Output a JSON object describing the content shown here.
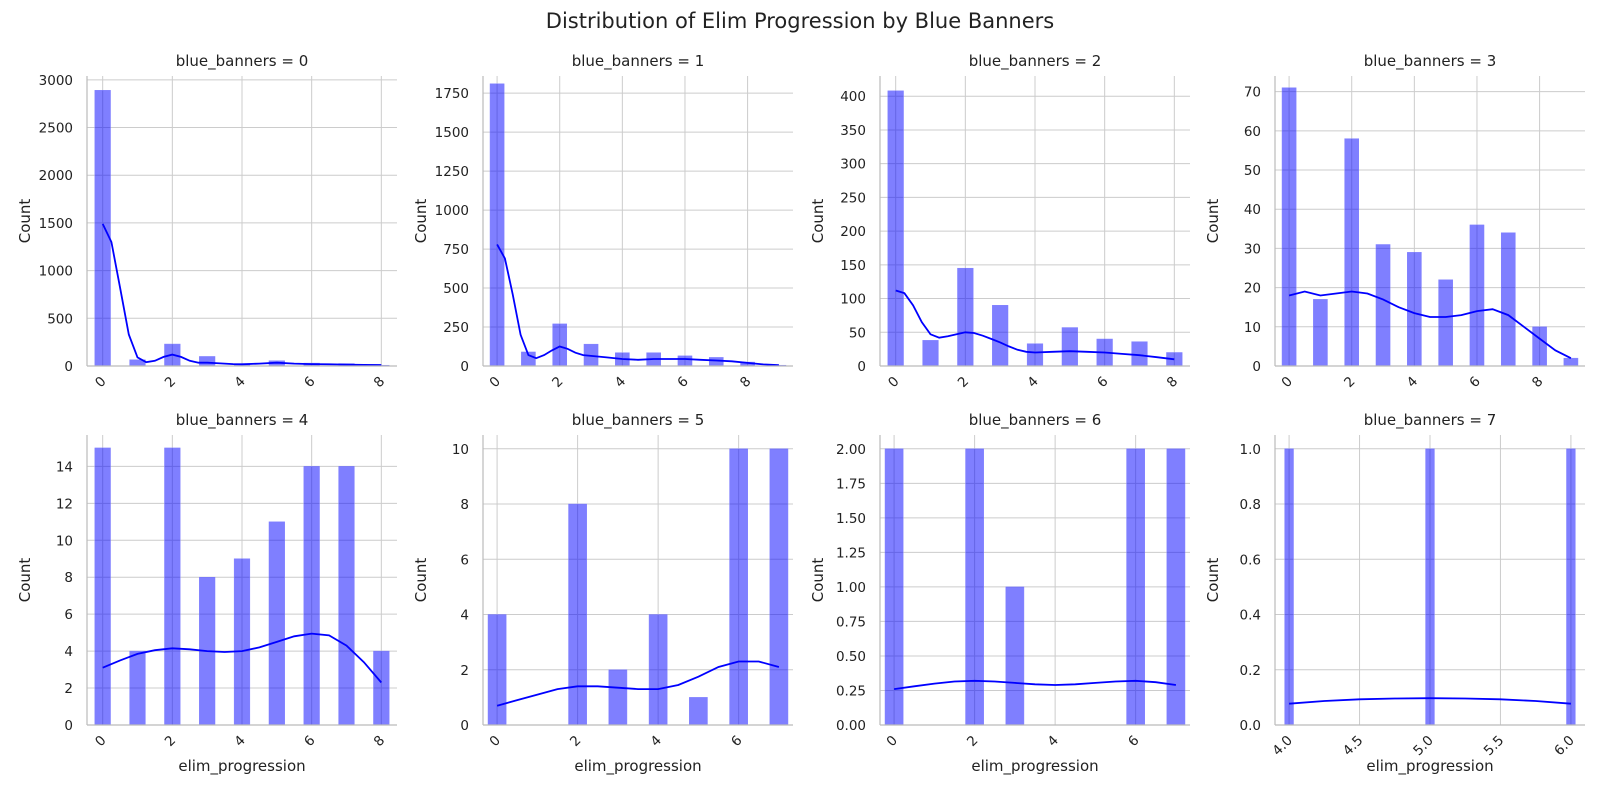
{
  "suptitle": "Distribution of Elim Progression by Blue Banners",
  "colors": {
    "bar": "#0000ff",
    "bar_opacity": 0.5,
    "kde": "#0000ff",
    "grid": "#cccccc",
    "axis": "#bbbbbb"
  },
  "chart_data": [
    {
      "type": "bar",
      "title": "blue_banners = 0",
      "xlabel": "",
      "ylabel": "Count",
      "xlim": [
        -0.45,
        8.45
      ],
      "ylim": [
        0,
        3040
      ],
      "xticks": [
        "0",
        "2",
        "4",
        "6",
        "8"
      ],
      "xtick_values": [
        0,
        2,
        4,
        6,
        8
      ],
      "yticks": [
        "0",
        "500",
        "1000",
        "1500",
        "2000",
        "2500",
        "3000"
      ],
      "ytick_values": [
        0,
        500,
        1000,
        1500,
        2000,
        2500,
        3000
      ],
      "x": [
        0,
        1,
        2,
        3,
        4,
        5,
        6,
        7,
        8
      ],
      "values": [
        2890,
        65,
        230,
        100,
        25,
        55,
        30,
        25,
        8
      ],
      "kde_x": [
        0,
        0.25,
        0.5,
        0.75,
        1,
        1.25,
        1.5,
        1.75,
        2,
        2.25,
        2.5,
        2.75,
        3,
        3.25,
        3.5,
        3.75,
        4,
        4.5,
        5,
        5.5,
        6,
        6.5,
        7,
        7.5,
        8
      ],
      "kde_y": [
        1490,
        1300,
        820,
        330,
        90,
        40,
        55,
        95,
        120,
        95,
        55,
        35,
        35,
        30,
        25,
        20,
        18,
        25,
        35,
        25,
        20,
        18,
        15,
        12,
        10
      ]
    },
    {
      "type": "bar",
      "title": "blue_banners = 1",
      "xlabel": "",
      "ylabel": "Count",
      "xlim": [
        -0.45,
        9.45
      ],
      "ylim": [
        0,
        1860
      ],
      "xticks": [
        "0",
        "2",
        "4",
        "6",
        "8"
      ],
      "xtick_values": [
        0,
        2,
        4,
        6,
        8
      ],
      "yticks": [
        "0",
        "250",
        "500",
        "750",
        "1000",
        "1250",
        "1500",
        "1750"
      ],
      "ytick_values": [
        0,
        250,
        500,
        750,
        1000,
        1250,
        1500,
        1750
      ],
      "x": [
        0,
        1,
        2,
        3,
        4,
        5,
        6,
        7,
        8,
        9
      ],
      "values": [
        1810,
        90,
        270,
        140,
        85,
        85,
        65,
        55,
        25,
        5
      ],
      "kde_x": [
        0,
        0.25,
        0.5,
        0.75,
        1,
        1.25,
        1.5,
        1.75,
        2,
        2.25,
        2.5,
        2.75,
        3,
        3.5,
        4,
        4.5,
        5,
        5.5,
        6,
        6.5,
        7,
        7.5,
        8,
        8.5,
        9
      ],
      "kde_y": [
        780,
        690,
        460,
        200,
        70,
        50,
        70,
        100,
        125,
        110,
        85,
        70,
        65,
        55,
        45,
        40,
        45,
        45,
        45,
        40,
        35,
        30,
        20,
        10,
        5
      ]
    },
    {
      "type": "bar",
      "title": "blue_banners = 2",
      "xlabel": "",
      "ylabel": "Count",
      "xlim": [
        -0.45,
        8.45
      ],
      "ylim": [
        0,
        430
      ],
      "xticks": [
        "0",
        "2",
        "4",
        "6",
        "8"
      ],
      "xtick_values": [
        0,
        2,
        4,
        6,
        8
      ],
      "yticks": [
        "0",
        "50",
        "100",
        "150",
        "200",
        "250",
        "300",
        "350",
        "400"
      ],
      "ytick_values": [
        0,
        50,
        100,
        150,
        200,
        250,
        300,
        350,
        400
      ],
      "x": [
        0,
        1,
        2,
        3,
        4,
        5,
        6,
        7,
        8
      ],
      "values": [
        408,
        38,
        145,
        90,
        33,
        57,
        40,
        36,
        20
      ],
      "kde_x": [
        0,
        0.25,
        0.5,
        0.75,
        1,
        1.25,
        1.5,
        1.75,
        2,
        2.25,
        2.5,
        2.75,
        3,
        3.25,
        3.5,
        3.75,
        4,
        4.5,
        5,
        5.5,
        6,
        6.5,
        7,
        7.5,
        8
      ],
      "kde_y": [
        112,
        108,
        90,
        65,
        47,
        42,
        44,
        47,
        50,
        49,
        45,
        40,
        35,
        29,
        24,
        21,
        20,
        21,
        22,
        21,
        20,
        18,
        16,
        13,
        10
      ]
    },
    {
      "type": "bar",
      "title": "blue_banners = 3",
      "xlabel": "",
      "ylabel": "Count",
      "xlim": [
        -0.45,
        9.45
      ],
      "ylim": [
        0,
        74
      ],
      "xticks": [
        "0",
        "2",
        "4",
        "6",
        "8"
      ],
      "xtick_values": [
        0,
        2,
        4,
        6,
        8
      ],
      "yticks": [
        "0",
        "10",
        "20",
        "30",
        "40",
        "50",
        "60",
        "70"
      ],
      "ytick_values": [
        0,
        10,
        20,
        30,
        40,
        50,
        60,
        70
      ],
      "x": [
        0,
        1,
        2,
        3,
        4,
        5,
        6,
        7,
        8,
        9
      ],
      "values": [
        71,
        17,
        58,
        31,
        29,
        22,
        36,
        34,
        10,
        2
      ],
      "kde_x": [
        0,
        0.5,
        1,
        1.5,
        2,
        2.5,
        3,
        3.5,
        4,
        4.5,
        5,
        5.5,
        6,
        6.5,
        7,
        7.5,
        8,
        8.5,
        9
      ],
      "kde_y": [
        18,
        19,
        18,
        18.5,
        19,
        18.5,
        17,
        15,
        13.5,
        12.5,
        12.5,
        13,
        14,
        14.5,
        13,
        10,
        7,
        4,
        2
      ]
    },
    {
      "type": "bar",
      "title": "blue_banners = 4",
      "xlabel": "elim_progression",
      "ylabel": "Count",
      "xlim": [
        -0.45,
        8.45
      ],
      "ylim": [
        0,
        15.7
      ],
      "xticks": [
        "0",
        "2",
        "4",
        "6",
        "8"
      ],
      "xtick_values": [
        0,
        2,
        4,
        6,
        8
      ],
      "yticks": [
        "0",
        "2",
        "4",
        "6",
        "8",
        "10",
        "12",
        "14"
      ],
      "ytick_values": [
        0,
        2,
        4,
        6,
        8,
        10,
        12,
        14
      ],
      "x": [
        0,
        1,
        2,
        3,
        4,
        5,
        6,
        7,
        8
      ],
      "values": [
        15,
        4,
        15,
        8,
        9,
        11,
        14,
        14,
        4
      ],
      "kde_x": [
        0,
        0.5,
        1,
        1.5,
        2,
        2.5,
        3,
        3.5,
        4,
        4.5,
        5,
        5.5,
        6,
        6.5,
        7,
        7.5,
        8
      ],
      "kde_y": [
        3.1,
        3.5,
        3.85,
        4.05,
        4.15,
        4.1,
        4.0,
        3.95,
        4.0,
        4.2,
        4.5,
        4.8,
        4.95,
        4.85,
        4.3,
        3.4,
        2.3
      ]
    },
    {
      "type": "bar",
      "title": "blue_banners = 5",
      "xlabel": "elim_progression",
      "ylabel": "Count",
      "xlim": [
        -0.35,
        7.35
      ],
      "ylim": [
        0,
        10.5
      ],
      "xticks": [
        "0",
        "2",
        "4",
        "6"
      ],
      "xtick_values": [
        0,
        2,
        4,
        6
      ],
      "yticks": [
        "0",
        "2",
        "4",
        "6",
        "8",
        "10"
      ],
      "ytick_values": [
        0,
        2,
        4,
        6,
        8,
        10
      ],
      "x": [
        0,
        2,
        3,
        4,
        5,
        6,
        7
      ],
      "values": [
        4,
        8,
        2,
        4,
        1,
        10,
        10
      ],
      "kde_x": [
        0,
        0.5,
        1,
        1.5,
        2,
        2.5,
        3,
        3.5,
        4,
        4.5,
        5,
        5.5,
        6,
        6.5,
        7
      ],
      "kde_y": [
        0.7,
        0.9,
        1.1,
        1.3,
        1.4,
        1.4,
        1.35,
        1.3,
        1.3,
        1.45,
        1.75,
        2.1,
        2.3,
        2.3,
        2.1
      ]
    },
    {
      "type": "bar",
      "title": "blue_banners = 6",
      "xlabel": "elim_progression",
      "ylabel": "Count",
      "xlim": [
        -0.35,
        7.35
      ],
      "ylim": [
        0,
        2.1
      ],
      "xticks": [
        "0",
        "2",
        "4",
        "6"
      ],
      "xtick_values": [
        0,
        2,
        4,
        6
      ],
      "yticks": [
        "0.00",
        "0.25",
        "0.50",
        "0.75",
        "1.00",
        "1.25",
        "1.50",
        "1.75",
        "2.00"
      ],
      "ytick_values": [
        0,
        0.25,
        0.5,
        0.75,
        1,
        1.25,
        1.5,
        1.75,
        2
      ],
      "x": [
        0,
        2,
        3,
        6,
        7
      ],
      "values": [
        2,
        2,
        1,
        2,
        2
      ],
      "kde_x": [
        0,
        0.5,
        1,
        1.5,
        2,
        2.5,
        3,
        3.5,
        4,
        4.5,
        5,
        5.5,
        6,
        6.5,
        7
      ],
      "kde_y": [
        0.26,
        0.28,
        0.3,
        0.315,
        0.32,
        0.315,
        0.305,
        0.295,
        0.29,
        0.295,
        0.305,
        0.315,
        0.32,
        0.31,
        0.29
      ]
    },
    {
      "type": "bar",
      "title": "blue_banners = 7",
      "xlabel": "elim_progression",
      "ylabel": "Count",
      "xlim": [
        3.9,
        6.1
      ],
      "ylim": [
        0,
        1.05
      ],
      "xticks": [
        "4.0",
        "4.5",
        "5.0",
        "5.5",
        "6.0"
      ],
      "xtick_values": [
        4,
        4.5,
        5,
        5.5,
        6
      ],
      "yticks": [
        "0.0",
        "0.2",
        "0.4",
        "0.6",
        "0.8",
        "1.0"
      ],
      "ytick_values": [
        0,
        0.2,
        0.4,
        0.6,
        0.8,
        1.0
      ],
      "x": [
        4,
        5,
        6
      ],
      "values": [
        1,
        1,
        1
      ],
      "bar_width": 0.0625,
      "kde_x": [
        4,
        4.25,
        4.5,
        4.75,
        5,
        5.25,
        5.5,
        5.75,
        6
      ],
      "kde_y": [
        0.077,
        0.087,
        0.093,
        0.096,
        0.097,
        0.096,
        0.093,
        0.087,
        0.077
      ]
    }
  ]
}
